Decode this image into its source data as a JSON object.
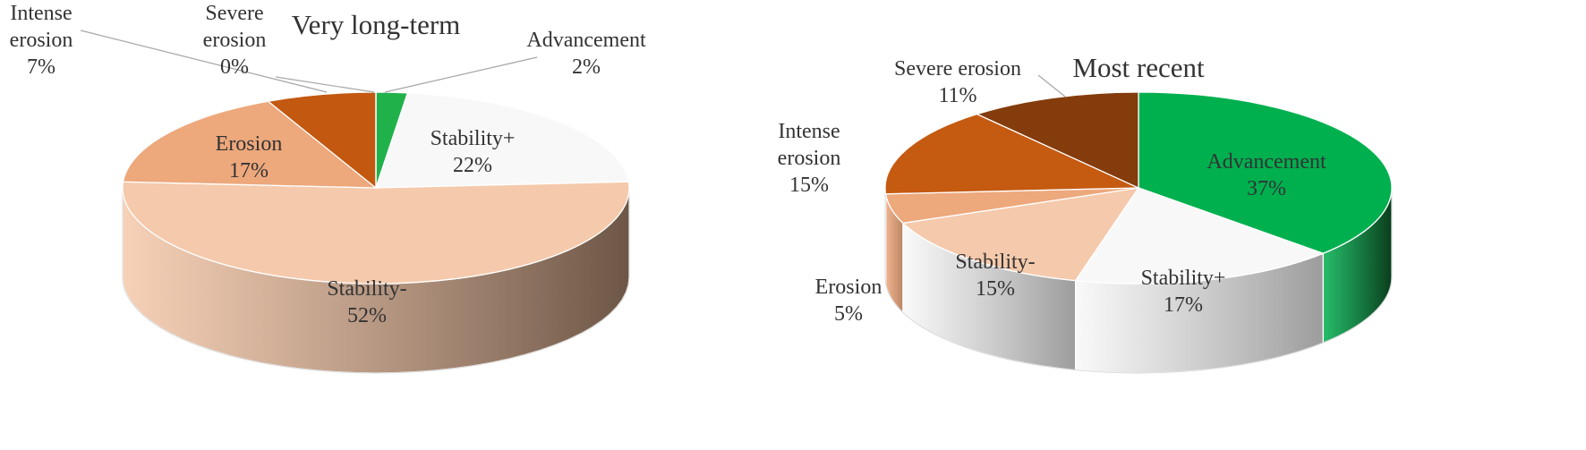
{
  "chart_data": [
    {
      "type": "pie",
      "title": "Very long-term",
      "slices": [
        {
          "name": "Advancement",
          "value": 2,
          "label": "2%",
          "color": "#21b14b",
          "side": "#13672c"
        },
        {
          "name": "Stability+",
          "value": 22,
          "label": "22%",
          "color": "#f8f8f8",
          "side": "#9a9a9a"
        },
        {
          "name": "Stability-",
          "value": 52,
          "label": "52%",
          "color": "#f5c9ab",
          "side": "#6d5646"
        },
        {
          "name": "Erosion",
          "value": 17,
          "label": "17%",
          "color": "#eda87c",
          "side": "#9a6c4f"
        },
        {
          "name": "Intense erosion",
          "value": 7,
          "label": "7%",
          "color": "#c35811",
          "side": "#7d390b"
        },
        {
          "name": "Severe erosion",
          "value": 0,
          "label": "0%",
          "color": "#8a3a0b",
          "side": "#5a2607"
        }
      ],
      "labels": {
        "Advancement": [
          "Advancement",
          "2%"
        ],
        "Stability+": [
          "Stability+",
          "22%"
        ],
        "Stability-": [
          "Stability-",
          "52%"
        ],
        "Erosion": [
          "Erosion",
          "17%"
        ],
        "Intense erosion": [
          "Intense",
          "erosion",
          "7%"
        ],
        "Severe erosion": [
          "Severe",
          "erosion",
          "0%"
        ]
      }
    },
    {
      "type": "pie",
      "title": "Most recent",
      "slices": [
        {
          "name": "Advancement",
          "value": 37,
          "label": "37%",
          "color": "#00b04f",
          "side": "#0a3d1c"
        },
        {
          "name": "Stability+",
          "value": 17,
          "label": "17%",
          "color": "#f8f8f8",
          "side": "#9c9c9c"
        },
        {
          "name": "Stability-",
          "value": 15,
          "label": "15%",
          "color": "#f5c9ab",
          "side": "#c8a186"
        },
        {
          "name": "Erosion",
          "value": 5,
          "label": "5%",
          "color": "#eda87c",
          "side": "#b98462"
        },
        {
          "name": "Intense erosion",
          "value": 15,
          "label": "15%",
          "color": "#c55a11",
          "side": "#7e3a0b"
        },
        {
          "name": "Severe erosion",
          "value": 11,
          "label": "11%",
          "color": "#843c0c",
          "side": "#5a2807"
        }
      ],
      "labels": {
        "Advancement": [
          "Advancement",
          "37%"
        ],
        "Stability+": [
          "Stability+",
          "17%"
        ],
        "Stability-": [
          "Stability-",
          "15%"
        ],
        "Erosion": [
          "Erosion",
          "5%"
        ],
        "Intense erosion": [
          "Intense",
          "erosion",
          "15%"
        ],
        "Severe erosion": [
          "Severe erosion",
          "11%"
        ]
      }
    }
  ]
}
